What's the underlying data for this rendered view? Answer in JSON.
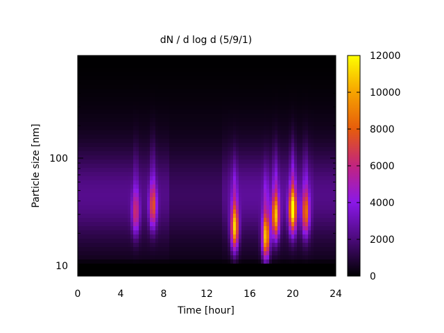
{
  "chart_data": {
    "type": "heatmap",
    "title": "dN / d log d (5/9/1)",
    "xlabel": "Time [hour]",
    "ylabel": "Particle size [nm]",
    "xlim": [
      0,
      24
    ],
    "ylim": [
      8,
      900
    ],
    "y_scale": "log",
    "x_ticks": [
      0,
      4,
      8,
      12,
      16,
      20,
      24
    ],
    "y_ticks": [
      10,
      100
    ],
    "colorbar": {
      "range": [
        0,
        12000
      ],
      "ticks": [
        0,
        2000,
        4000,
        6000,
        8000,
        10000,
        12000
      ],
      "colormap": [
        "#000000",
        "#4b0a7a",
        "#8a18e8",
        "#c2247f",
        "#e65c0c",
        "#f6a300",
        "#ffff00"
      ]
    },
    "size_range_nm": [
      10,
      800
    ],
    "background_level": 2200,
    "events": [
      {
        "time": 5.4,
        "size_nm": 30,
        "peak": 4200
      },
      {
        "time": 7.0,
        "size_nm": 35,
        "peak": 5200
      },
      {
        "time": 14.6,
        "size_nm": 22,
        "peak": 8500
      },
      {
        "time": 17.5,
        "size_nm": 18,
        "peak": 8800
      },
      {
        "time": 18.4,
        "size_nm": 28,
        "peak": 7800
      },
      {
        "time": 20.0,
        "size_nm": 32,
        "peak": 9200
      },
      {
        "time": 21.2,
        "size_nm": 30,
        "peak": 6000
      }
    ]
  }
}
